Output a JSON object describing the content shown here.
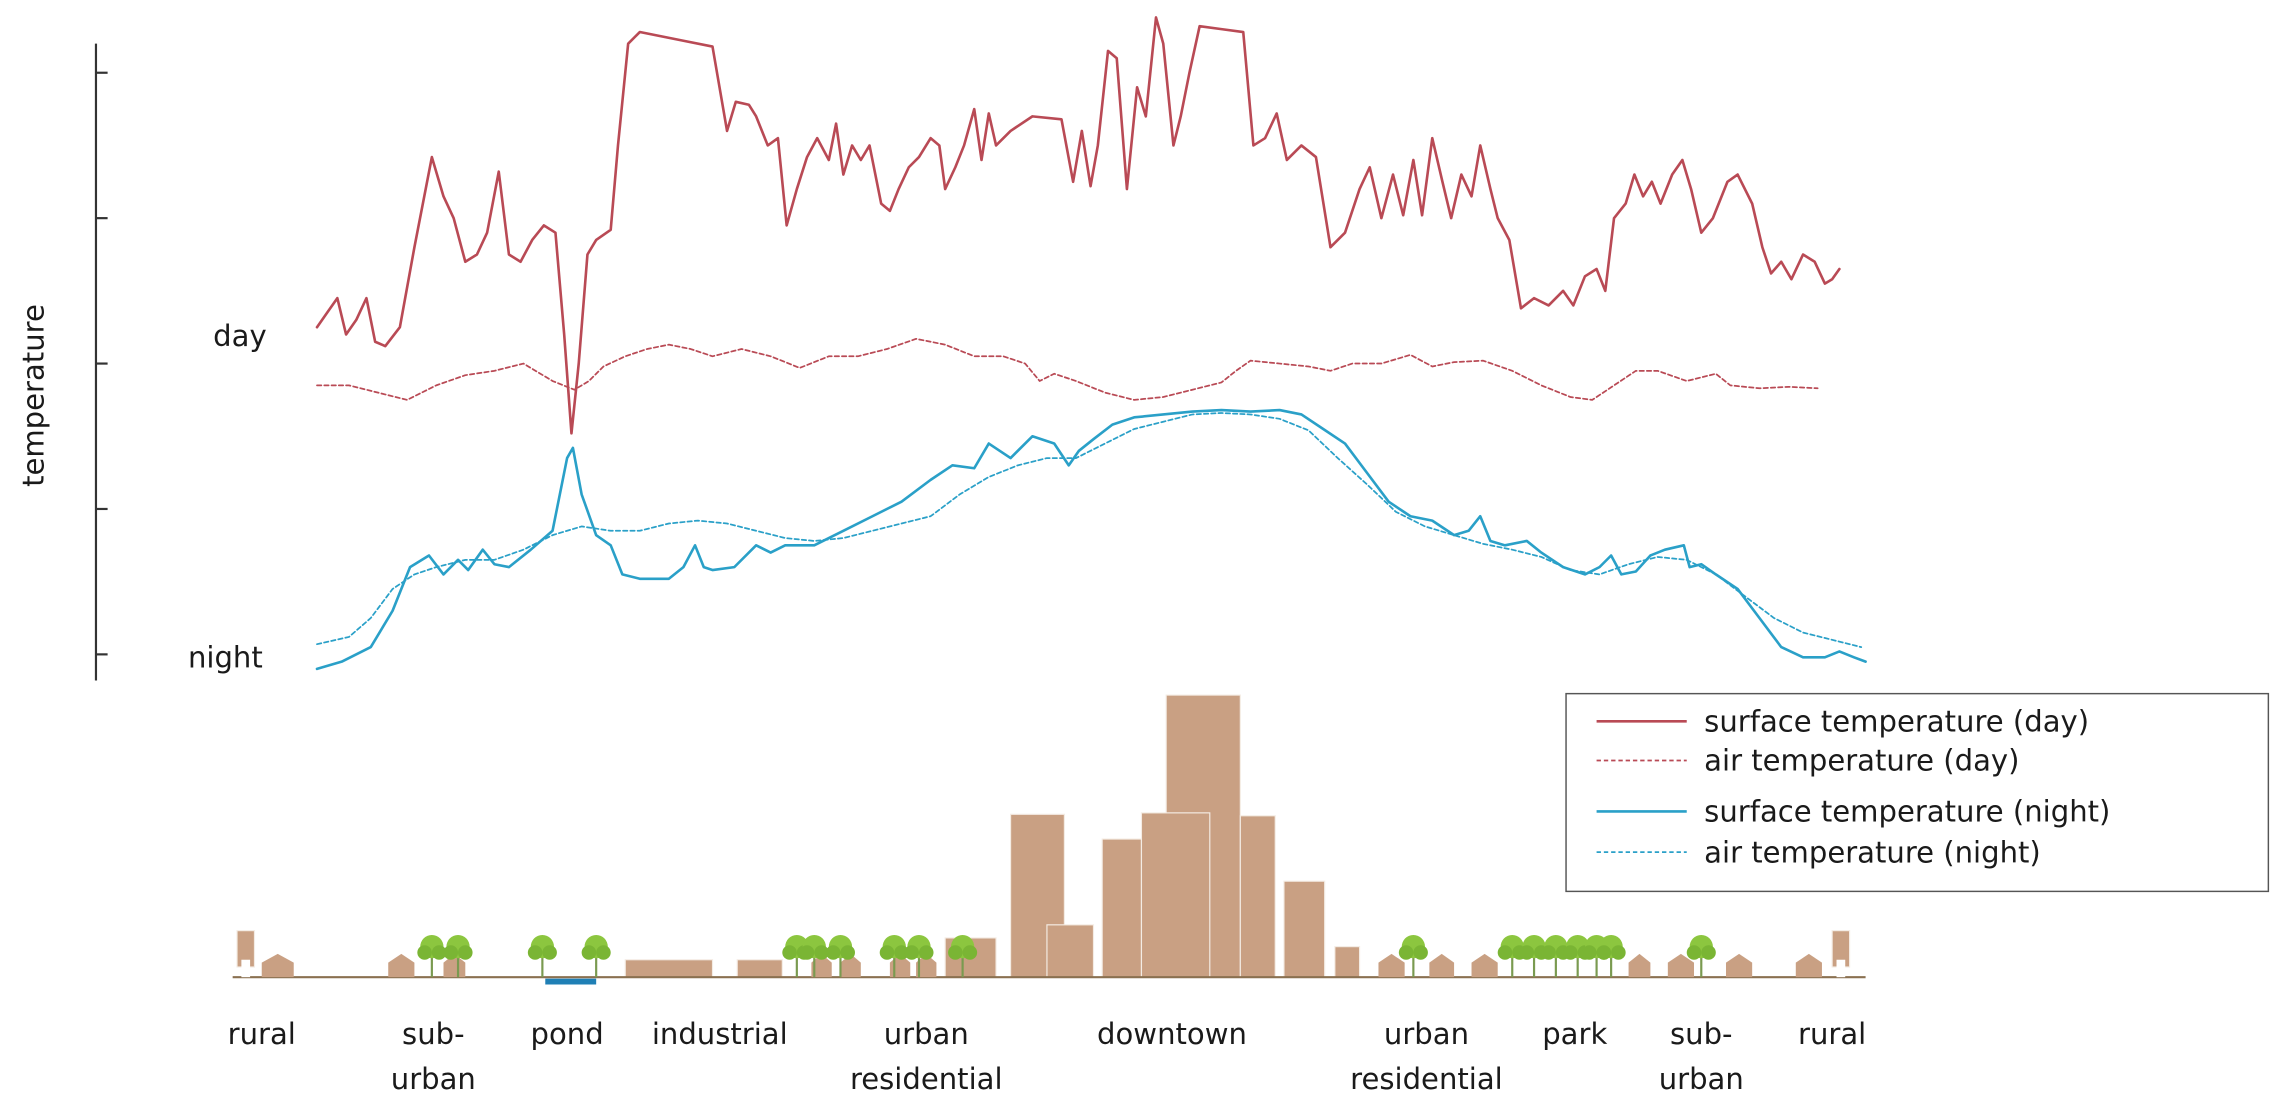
{
  "y_axis_label": "temperature",
  "curve_labels": {
    "day": "day",
    "night": "night"
  },
  "legend": [
    {
      "label": "surface temperature (day)"
    },
    {
      "label": "air temperature (day)"
    },
    {
      "label": "surface temperature (night)"
    },
    {
      "label": "air temperature (night)"
    }
  ],
  "zones": [
    {
      "lines": [
        "rural"
      ]
    },
    {
      "lines": [
        "sub-",
        "urban"
      ]
    },
    {
      "lines": [
        "pond"
      ]
    },
    {
      "lines": [
        "industrial"
      ]
    },
    {
      "lines": [
        "urban",
        "residential"
      ]
    },
    {
      "lines": [
        "downtown"
      ]
    },
    {
      "lines": [
        "urban",
        "residential"
      ]
    },
    {
      "lines": [
        "park"
      ]
    },
    {
      "lines": [
        "sub-",
        "urban"
      ]
    },
    {
      "lines": [
        "rural"
      ]
    }
  ]
}
